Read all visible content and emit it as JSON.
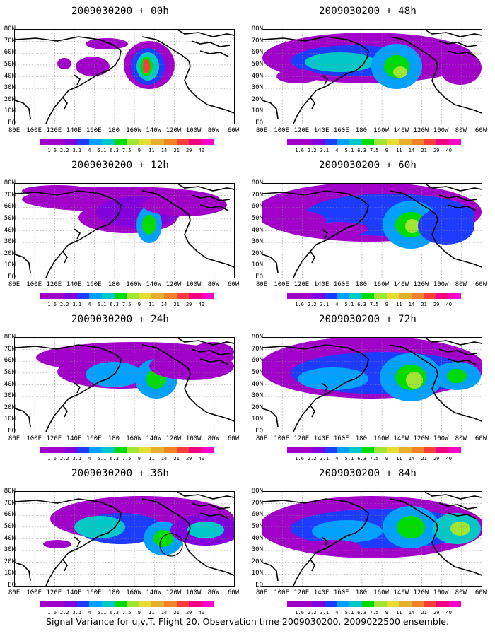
{
  "panels": [
    {
      "title": "2009030200 + 00h",
      "lead": "00h"
    },
    {
      "title": "2009030200 + 12h",
      "lead": "12h"
    },
    {
      "title": "2009030200 + 24h",
      "lead": "24h"
    },
    {
      "title": "2009030200 + 36h",
      "lead": "36h"
    },
    {
      "title": "2009030200 + 48h",
      "lead": "48h"
    },
    {
      "title": "2009030200 + 60h",
      "lead": "60h"
    },
    {
      "title": "2009030200 + 72h",
      "lead": "72h"
    },
    {
      "title": "2009030200 + 84h",
      "lead": "84h"
    }
  ],
  "map": {
    "lat_labels": [
      "80N",
      "70N",
      "60N",
      "50N",
      "40N",
      "30N",
      "20N",
      "10N",
      "EQ"
    ],
    "lon_labels": [
      "80E",
      "100E",
      "120E",
      "140E",
      "160E",
      "180",
      "160W",
      "140W",
      "120W",
      "100W",
      "80W",
      "60W"
    ]
  },
  "colorbar": {
    "labels": [
      "1.6",
      "2.2",
      "3.1",
      "4",
      "5.1",
      "6.3",
      "7.5",
      "9",
      "11",
      "14",
      "21",
      "29",
      "40"
    ],
    "colors": [
      "#a000c8",
      "#8200dc",
      "#1e3cff",
      "#00a0ff",
      "#00c8c8",
      "#00dc00",
      "#a0e632",
      "#e6dc32",
      "#e6af2d",
      "#f08228",
      "#fa3c3c",
      "#f00082",
      "#ff00c8"
    ]
  },
  "footer": "Signal Variance for u,v,T. Flight 20. Observation time 2009030200. 2009022500 ensemble."
}
